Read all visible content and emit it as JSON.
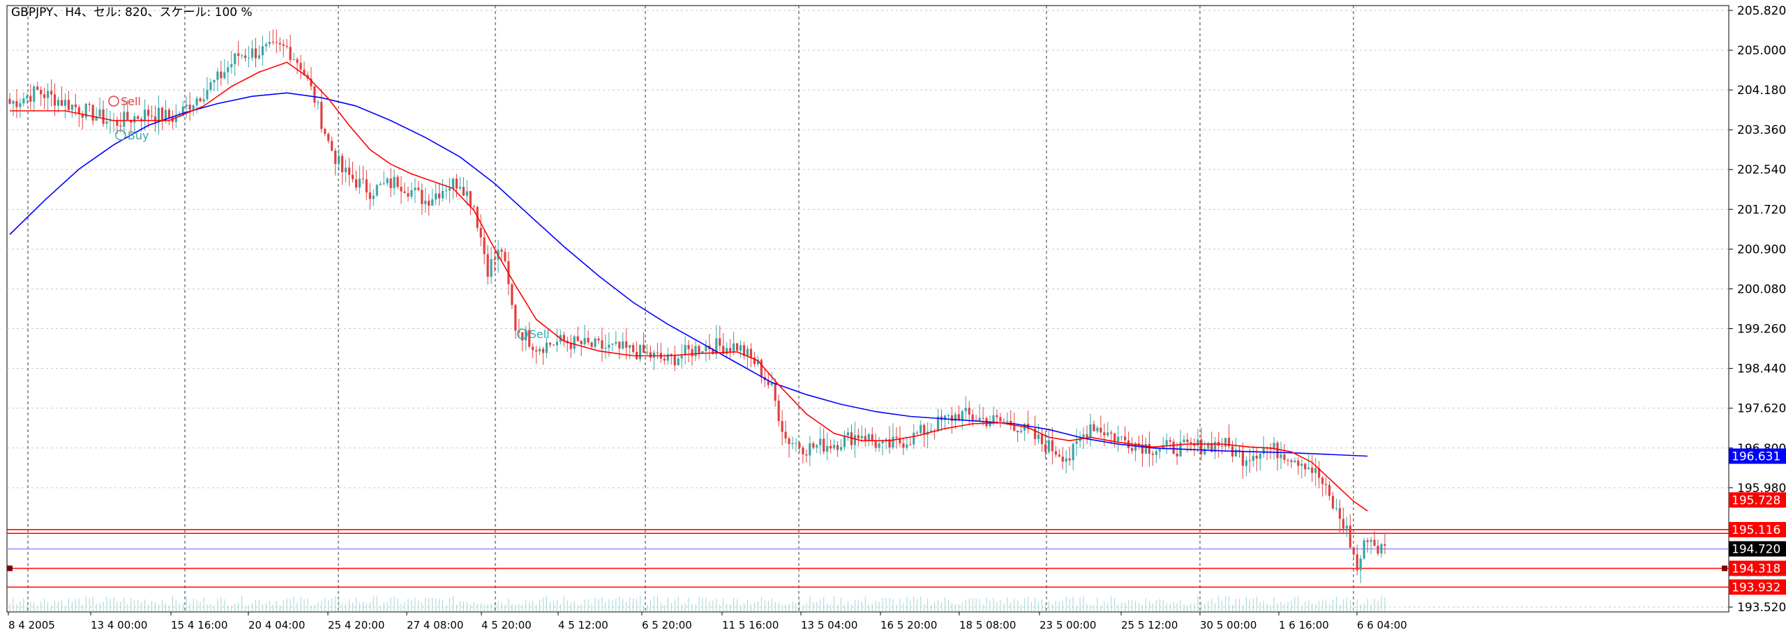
{
  "chart_data": {
    "type": "candlestick",
    "title": "GBPJPY、H4、セル: 820、スケール: 100 %",
    "symbol": "GBPJPY",
    "timeframe": "H4",
    "ylim": [
      193.42,
      205.92
    ],
    "grid": true,
    "y_ticks": [
      "205.820",
      "205.000",
      "204.180",
      "203.360",
      "202.540",
      "201.720",
      "200.900",
      "200.080",
      "199.260",
      "198.440",
      "197.620",
      "196.800",
      "195.980",
      "193.520"
    ],
    "x_ticks": [
      "8 4 2005",
      "13 4 00:00",
      "15 4 16:00",
      "20 4 04:00",
      "25 4 20:00",
      "27 4 08:00",
      "4 5 20:00",
      "4 5 12:00",
      "6 5 20:00",
      "11 5 16:00",
      "13 5 04:00",
      "16 5 20:00",
      "18 5 08:00",
      "23 5 00:00",
      "25 5 12:00",
      "30 5 00:00",
      "1 6 16:00",
      "6 6 04:00"
    ],
    "price_path": [
      [
        0,
        203.9
      ],
      [
        8,
        204.15
      ],
      [
        20,
        203.8
      ],
      [
        30,
        203.5
      ],
      [
        40,
        203.7
      ],
      [
        48,
        203.6
      ],
      [
        52,
        203.9
      ],
      [
        60,
        204.4
      ],
      [
        66,
        204.9
      ],
      [
        74,
        205.0
      ],
      [
        80,
        205.05
      ],
      [
        84,
        204.7
      ],
      [
        88,
        204.0
      ],
      [
        92,
        203.1
      ],
      [
        96,
        202.5
      ],
      [
        104,
        202.1
      ],
      [
        112,
        202.3
      ],
      [
        120,
        201.9
      ],
      [
        126,
        202.2
      ],
      [
        130,
        202.3
      ],
      [
        134,
        201.8
      ],
      [
        138,
        200.5
      ],
      [
        142,
        200.9
      ],
      [
        146,
        199.3
      ],
      [
        152,
        198.9
      ],
      [
        160,
        199.0
      ],
      [
        168,
        198.9
      ],
      [
        180,
        198.8
      ],
      [
        190,
        198.6
      ],
      [
        200,
        198.9
      ],
      [
        210,
        198.9
      ],
      [
        216,
        198.5
      ],
      [
        220,
        198.0
      ],
      [
        224,
        197.0
      ],
      [
        230,
        196.8
      ],
      [
        238,
        196.9
      ],
      [
        246,
        197.1
      ],
      [
        252,
        196.8
      ],
      [
        260,
        197.0
      ],
      [
        268,
        197.3
      ],
      [
        274,
        197.5
      ],
      [
        280,
        197.4
      ],
      [
        290,
        197.3
      ],
      [
        298,
        196.9
      ],
      [
        306,
        196.6
      ],
      [
        312,
        197.3
      ],
      [
        320,
        197.0
      ],
      [
        330,
        196.8
      ],
      [
        340,
        196.8
      ],
      [
        350,
        196.9
      ],
      [
        356,
        196.6
      ],
      [
        362,
        196.8
      ],
      [
        368,
        196.7
      ],
      [
        374,
        196.5
      ],
      [
        378,
        196.2
      ],
      [
        382,
        195.6
      ],
      [
        386,
        195.1
      ],
      [
        389,
        194.3
      ],
      [
        392,
        195.0
      ],
      [
        395,
        194.72
      ]
    ],
    "sma_fast": [
      [
        0,
        203.75
      ],
      [
        16,
        203.75
      ],
      [
        30,
        203.55
      ],
      [
        46,
        203.55
      ],
      [
        56,
        203.85
      ],
      [
        64,
        204.25
      ],
      [
        72,
        204.55
      ],
      [
        80,
        204.75
      ],
      [
        86,
        204.45
      ],
      [
        92,
        204.0
      ],
      [
        98,
        203.45
      ],
      [
        104,
        202.95
      ],
      [
        110,
        202.65
      ],
      [
        116,
        202.45
      ],
      [
        122,
        202.3
      ],
      [
        128,
        202.15
      ],
      [
        134,
        201.7
      ],
      [
        140,
        200.9
      ],
      [
        146,
        200.15
      ],
      [
        152,
        199.45
      ],
      [
        160,
        199.0
      ],
      [
        170,
        198.8
      ],
      [
        180,
        198.7
      ],
      [
        190,
        198.7
      ],
      [
        200,
        198.75
      ],
      [
        210,
        198.78
      ],
      [
        216,
        198.6
      ],
      [
        222,
        198.1
      ],
      [
        230,
        197.5
      ],
      [
        238,
        197.1
      ],
      [
        246,
        196.95
      ],
      [
        254,
        196.95
      ],
      [
        262,
        197.05
      ],
      [
        270,
        197.2
      ],
      [
        278,
        197.3
      ],
      [
        286,
        197.32
      ],
      [
        294,
        197.22
      ],
      [
        300,
        197.02
      ],
      [
        306,
        196.95
      ],
      [
        312,
        197.02
      ],
      [
        320,
        196.92
      ],
      [
        330,
        196.82
      ],
      [
        340,
        196.88
      ],
      [
        350,
        196.88
      ],
      [
        358,
        196.82
      ],
      [
        364,
        196.8
      ],
      [
        370,
        196.72
      ],
      [
        376,
        196.5
      ],
      [
        382,
        196.1
      ],
      [
        388,
        195.7
      ],
      [
        392,
        195.5
      ]
    ],
    "sma_slow": [
      [
        0,
        201.2
      ],
      [
        10,
        201.9
      ],
      [
        20,
        202.55
      ],
      [
        30,
        203.05
      ],
      [
        40,
        203.45
      ],
      [
        50,
        203.7
      ],
      [
        60,
        203.9
      ],
      [
        70,
        204.05
      ],
      [
        80,
        204.12
      ],
      [
        90,
        204.02
      ],
      [
        100,
        203.85
      ],
      [
        110,
        203.55
      ],
      [
        120,
        203.2
      ],
      [
        130,
        202.8
      ],
      [
        140,
        202.25
      ],
      [
        150,
        201.6
      ],
      [
        160,
        200.95
      ],
      [
        170,
        200.35
      ],
      [
        180,
        199.8
      ],
      [
        190,
        199.35
      ],
      [
        200,
        198.95
      ],
      [
        210,
        198.55
      ],
      [
        220,
        198.15
      ],
      [
        230,
        197.9
      ],
      [
        240,
        197.7
      ],
      [
        250,
        197.55
      ],
      [
        260,
        197.45
      ],
      [
        270,
        197.4
      ],
      [
        280,
        197.35
      ],
      [
        290,
        197.3
      ],
      [
        300,
        197.18
      ],
      [
        310,
        197.0
      ],
      [
        320,
        196.88
      ],
      [
        330,
        196.8
      ],
      [
        340,
        196.77
      ],
      [
        350,
        196.74
      ],
      [
        360,
        196.72
      ],
      [
        370,
        196.7
      ],
      [
        380,
        196.67
      ],
      [
        392,
        196.631
      ]
    ],
    "series": [
      {
        "name": "",
        "color": "#ff0000"
      },
      {
        "name": "",
        "color": "#0000ff"
      }
    ],
    "price_tags": [
      {
        "value": "196.631",
        "price": 196.631,
        "bg": "#0000ff"
      },
      {
        "value": "195.728",
        "price": 195.728,
        "bg": "#ff0000"
      },
      {
        "value": "195.116",
        "price": 195.116,
        "bg": "#ff0000"
      },
      {
        "value": "194.720",
        "price": 194.72,
        "bg": "#000000"
      },
      {
        "value": "194.318",
        "price": 194.318,
        "bg": "#ff0000"
      },
      {
        "value": "193.932",
        "price": 193.932,
        "bg": "#ff0000"
      }
    ],
    "hlines": [
      {
        "price": 195.116,
        "color": "#ff0000"
      },
      {
        "price": 195.04,
        "color": "#ff0000"
      },
      {
        "price": 194.72,
        "color": "#9999ff"
      },
      {
        "price": 194.318,
        "color": "#ff0000"
      },
      {
        "price": 193.932,
        "color": "#ff0000"
      }
    ],
    "signals": [
      {
        "label": "Sell",
        "color": "#e04040",
        "x": 30,
        "price": 203.95
      },
      {
        "label": "Buy",
        "color": "#3aa6a6",
        "x": 32,
        "price": 203.25
      },
      {
        "label": "Sell",
        "color": "#3aa6a6",
        "x": 148,
        "price": 199.15
      }
    ],
    "colors": {
      "up": "#3aa6a6",
      "down": "#e04040",
      "grid": "#c8c8c8",
      "vgrid": "#333333"
    }
  }
}
